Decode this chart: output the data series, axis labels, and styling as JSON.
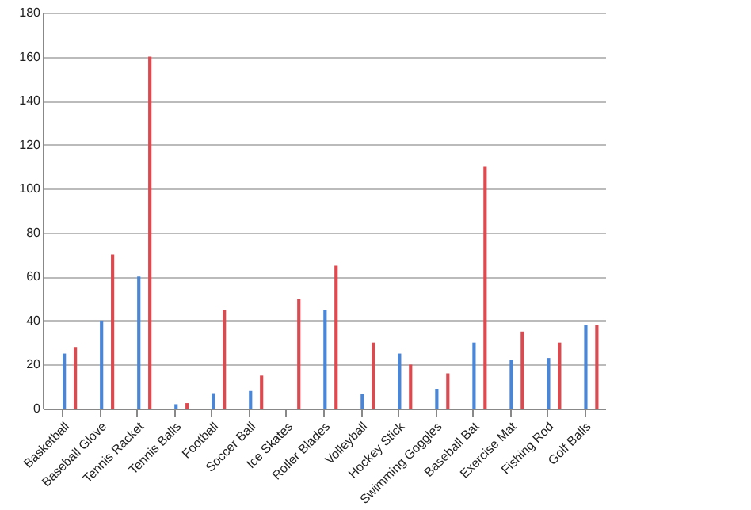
{
  "chart_data": {
    "type": "bar",
    "categories": [
      "Basketball",
      "Baseball Glove",
      "Tennis Racket",
      "Tennis Balls",
      "Football",
      "Soccer Ball",
      "Ice Skates",
      "Roller Blades",
      "Volleyball",
      "Hockey Stick",
      "Swimming Goggles",
      "Baseball Bat",
      "Exercise Mat",
      "Fishing Rod",
      "Golf Balls"
    ],
    "series": [
      {
        "color": "#4a86d8",
        "values": [
          25,
          40,
          60,
          2,
          7,
          8,
          0,
          45,
          6.5,
          25,
          9,
          30,
          22,
          23,
          38
        ]
      },
      {
        "color": "#dc4a50",
        "values": [
          28,
          70,
          160,
          2.5,
          45,
          15,
          50,
          65,
          30,
          20,
          16,
          110,
          35,
          30,
          38
        ]
      }
    ],
    "ylim": [
      0,
      180
    ],
    "yticks": [
      0,
      20,
      40,
      60,
      80,
      100,
      120,
      140,
      160,
      180
    ],
    "grid": "y"
  }
}
